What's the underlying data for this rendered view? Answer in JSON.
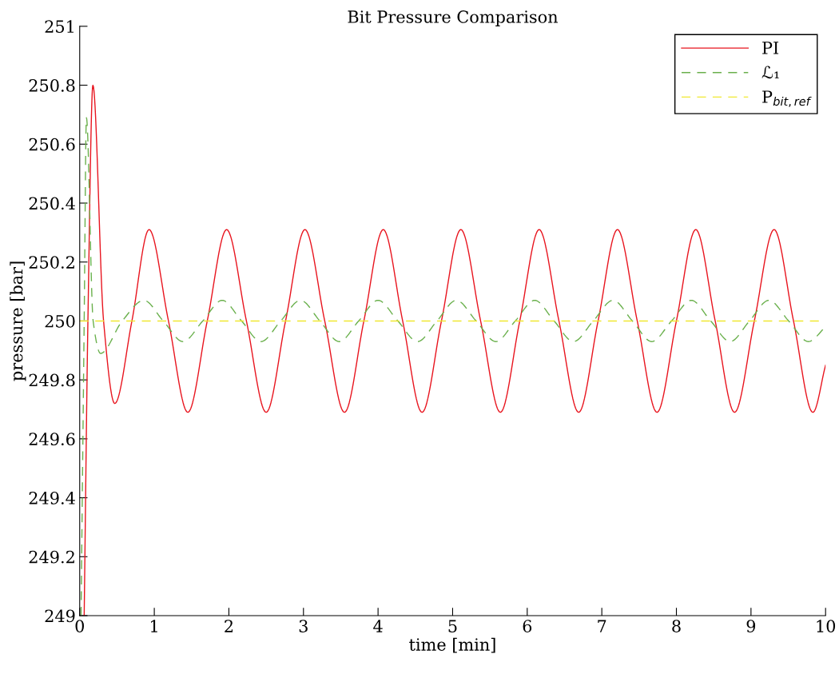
{
  "chart_data": {
    "type": "line",
    "title": "Bit Pressure Comparison",
    "xlabel": "time [min]",
    "ylabel": "pressure [bar]",
    "xlim": [
      0,
      10
    ],
    "xticks": [
      0,
      1,
      2,
      3,
      4,
      5,
      6,
      7,
      8,
      9,
      10
    ],
    "ylim": [
      249,
      251
    ],
    "yticks": [
      249,
      249.2,
      249.4,
      249.6,
      249.8,
      250,
      250.2,
      250.4,
      250.6,
      250.8,
      251
    ],
    "grid": false,
    "legend": "top right",
    "marker": "none",
    "series": [
      {
        "name": "PI",
        "color": "#e8141e",
        "line_style": "solid",
        "x": [
          0.06,
          0.11,
          0.177,
          0.32,
          0.47,
          0.7,
          0.93,
          1.19,
          1.45,
          1.71,
          1.97,
          2.235,
          2.5,
          2.76,
          3.02,
          3.285,
          3.55,
          3.81,
          4.07,
          4.33,
          4.59,
          4.85,
          5.11,
          5.375,
          5.64,
          5.9,
          6.16,
          6.425,
          6.69,
          6.95,
          7.21,
          7.475,
          7.74,
          8.0,
          8.26,
          8.52,
          8.78,
          9.045,
          9.31,
          9.57,
          9.83,
          10
        ],
        "values": [
          249,
          250,
          250.8,
          250,
          249.72,
          250,
          250.31,
          250,
          249.69,
          250,
          250.31,
          250,
          249.69,
          250,
          250.31,
          250,
          249.69,
          250,
          250.31,
          250,
          249.69,
          250,
          250.31,
          250,
          249.69,
          250,
          250.31,
          250,
          249.69,
          250,
          250.31,
          250,
          249.69,
          250,
          250.31,
          250,
          249.69,
          250,
          250.31,
          250,
          249.69,
          249.85
        ]
      },
      {
        "name": "ℒ₁",
        "color": "#6ab04c",
        "line_style": "dashed",
        "x": [
          0.018,
          0.06,
          0.09,
          0.18,
          0.28,
          0.57,
          0.86,
          1.12,
          1.385,
          1.65,
          1.91,
          2.17,
          2.43,
          2.695,
          2.96,
          3.22,
          3.48,
          3.74,
          4.0,
          4.265,
          4.53,
          4.79,
          5.05,
          5.315,
          5.58,
          5.84,
          6.1,
          6.36,
          6.62,
          6.885,
          7.15,
          7.41,
          7.67,
          7.935,
          8.2,
          8.46,
          8.72,
          8.98,
          9.24,
          9.505,
          9.77,
          10
        ],
        "values": [
          249,
          250,
          250.69,
          250,
          249.89,
          250,
          250.07,
          250,
          249.93,
          250,
          250.07,
          250,
          249.93,
          250,
          250.07,
          250,
          249.93,
          250,
          250.07,
          250,
          249.93,
          250,
          250.07,
          250,
          249.93,
          250,
          250.07,
          250,
          249.93,
          250,
          250.07,
          250,
          249.93,
          250,
          250.07,
          250,
          249.93,
          250,
          250.07,
          250,
          249.93,
          249.98
        ]
      },
      {
        "name": "P$_{bit,ref}$",
        "color": "#f0e832",
        "line_style": "dashed",
        "x": [
          0,
          10
        ],
        "values": [
          250,
          250
        ]
      }
    ]
  }
}
